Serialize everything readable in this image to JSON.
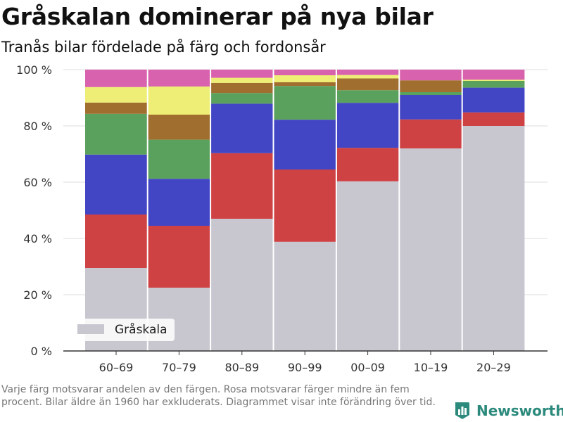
{
  "title": "Gråskalan dominerar på nya bilar",
  "subtitle": "Tranås bilar fördelade på färg och fordonsår",
  "footnote": "Varje färg motsvarar andelen av den färgen. Rosa motsvarar färger mindre än fem procent. Bilar äldre än 1960 har exkluderats. Diagrammet visar inte förändring över tid.",
  "brand": {
    "name": "Newsworthy",
    "icon": "bar-chart-icon",
    "color": "#2c8a7c"
  },
  "chart_data": {
    "type": "bar",
    "stacked": true,
    "categories": [
      "60–69",
      "70–79",
      "80–89",
      "90–99",
      "00–09",
      "10–19",
      "20–29"
    ],
    "y_ticks": [
      {
        "value": 0,
        "label": "0 %"
      },
      {
        "value": 20,
        "label": "20 %"
      },
      {
        "value": 40,
        "label": "40 %"
      },
      {
        "value": 60,
        "label": "60 %"
      },
      {
        "value": 80,
        "label": "80 %"
      },
      {
        "value": 100,
        "label": "100 %"
      }
    ],
    "ylim": [
      0,
      100
    ],
    "grid": true,
    "legend": {
      "position": "bottom-left",
      "label": "Gråskala",
      "color": "#c8c7d0"
    },
    "series": [
      {
        "name": "Gråskala",
        "color": "#c8c7d0",
        "values": [
          29.5,
          22.5,
          47,
          38.8,
          60.3,
          72,
          80
        ]
      },
      {
        "color": "#cf4244",
        "values": [
          19,
          22,
          23.3,
          25.7,
          11.9,
          10.3,
          4.8
        ]
      },
      {
        "color": "#4245c4",
        "values": [
          21.3,
          16.7,
          17.6,
          17.7,
          16,
          8.7,
          8.8
        ]
      },
      {
        "color": "#5ba15e",
        "values": [
          14.5,
          13.9,
          3.8,
          12,
          4.5,
          1,
          2.4
        ]
      },
      {
        "color": "#a06e2e",
        "values": [
          4,
          8.9,
          3.6,
          1.3,
          4.2,
          4.2,
          0
        ]
      },
      {
        "color": "#eeee76",
        "values": [
          5.5,
          10,
          1.8,
          2.5,
          1.2,
          0,
          0.4
        ]
      },
      {
        "color": "#d862ad",
        "values": [
          6.2,
          6,
          2.9,
          2,
          1.9,
          3.8,
          3.6
        ]
      }
    ]
  }
}
